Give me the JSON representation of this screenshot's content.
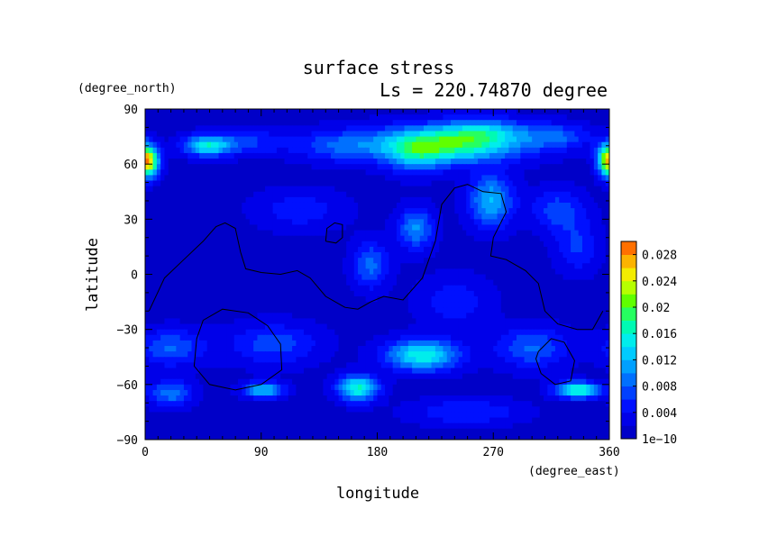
{
  "chart_data": {
    "type": "heatmap",
    "title": "surface stress",
    "subtitle": "Ls = 220.74870 degree",
    "xlabel": "longitude",
    "ylabel": "latitude",
    "x_units": "(degree_east)",
    "y_units": "(degree_north)",
    "xlim": [
      0,
      360
    ],
    "ylim": [
      -90,
      90
    ],
    "x_ticks": [
      "0",
      "90",
      "180",
      "270",
      "360"
    ],
    "y_ticks": [
      "90",
      "60",
      "30",
      "0",
      "−30",
      "−60",
      "−90"
    ],
    "x_tick_values": [
      0,
      90,
      180,
      270,
      360
    ],
    "y_tick_values": [
      90,
      60,
      30,
      0,
      -30,
      -60,
      -90
    ],
    "colorbar": {
      "min": 1e-10,
      "max": 0.03,
      "labels": [
        "1e−10",
        "0.004",
        "0.008",
        "0.012",
        "0.016",
        "0.02",
        "0.024",
        "0.028"
      ],
      "label_values": [
        0,
        0.004,
        0.008,
        0.012,
        0.016,
        0.02,
        0.024,
        0.028
      ],
      "levels": 15,
      "colormap": [
        "#0000c8",
        "#0000ff",
        "#0050ff",
        "#00a0ff",
        "#00e8ff",
        "#00ffa0",
        "#60ff00",
        "#f0ff00",
        "#ffa000",
        "#ff2800"
      ]
    },
    "blobs": [
      {
        "lon": 235,
        "lat": 71,
        "slon": 40,
        "slat": 7,
        "amp": 0.0175
      },
      {
        "lon": 210,
        "lat": 64,
        "slon": 16,
        "slat": 7,
        "amp": 0.007
      },
      {
        "lon": 265,
        "lat": 78,
        "slon": 22,
        "slat": 5,
        "amp": 0.007
      },
      {
        "lon": 48,
        "lat": 70,
        "slon": 13,
        "slat": 4,
        "amp": 0.0135
      },
      {
        "lon": 3,
        "lat": 61,
        "slon": 6,
        "slat": 6,
        "amp": 0.017
      },
      {
        "lon": 358,
        "lat": 63,
        "slon": 6,
        "slat": 6,
        "amp": 0.014
      },
      {
        "lon": 150,
        "lat": 70,
        "slon": 25,
        "slat": 6,
        "amp": 0.006
      },
      {
        "lon": 80,
        "lat": 72,
        "slon": 20,
        "slat": 5,
        "amp": 0.005
      },
      {
        "lon": 320,
        "lat": 75,
        "slon": 18,
        "slat": 5,
        "amp": 0.006
      },
      {
        "lon": 268,
        "lat": 40,
        "slon": 12,
        "slat": 10,
        "amp": 0.011
      },
      {
        "lon": 210,
        "lat": 25,
        "slon": 10,
        "slat": 8,
        "amp": 0.009
      },
      {
        "lon": 320,
        "lat": 35,
        "slon": 15,
        "slat": 8,
        "amp": 0.006
      },
      {
        "lon": 175,
        "lat": 5,
        "slon": 10,
        "slat": 9,
        "amp": 0.0075
      },
      {
        "lon": 335,
        "lat": 15,
        "slon": 12,
        "slat": 10,
        "amp": 0.005
      },
      {
        "lon": 215,
        "lat": -44,
        "slon": 20,
        "slat": 6,
        "amp": 0.0145
      },
      {
        "lon": 165,
        "lat": -62,
        "slon": 11,
        "slat": 5,
        "amp": 0.015
      },
      {
        "lon": 92,
        "lat": -63,
        "slon": 11,
        "slat": 3,
        "amp": 0.012
      },
      {
        "lon": 335,
        "lat": -63,
        "slon": 12,
        "slat": 3,
        "amp": 0.0165
      },
      {
        "lon": 20,
        "lat": -65,
        "slon": 12,
        "slat": 5,
        "amp": 0.008
      },
      {
        "lon": 300,
        "lat": -40,
        "slon": 20,
        "slat": 8,
        "amp": 0.007
      },
      {
        "lon": 100,
        "lat": -38,
        "slon": 25,
        "slat": 8,
        "amp": 0.006
      },
      {
        "lon": 20,
        "lat": -40,
        "slon": 18,
        "slat": 7,
        "amp": 0.007
      },
      {
        "lon": 250,
        "lat": -75,
        "slon": 30,
        "slat": 5,
        "amp": 0.005
      },
      {
        "lon": 120,
        "lat": 35,
        "slon": 25,
        "slat": 8,
        "amp": 0.004
      },
      {
        "lon": 240,
        "lat": -15,
        "slon": 20,
        "slat": 10,
        "amp": 0.004
      }
    ],
    "contours": [
      [
        [
          3,
          -20
        ],
        [
          15,
          -2
        ],
        [
          30,
          8
        ],
        [
          45,
          18
        ],
        [
          55,
          26
        ],
        [
          62,
          28
        ],
        [
          70,
          25
        ],
        [
          74,
          12
        ],
        [
          78,
          3
        ],
        [
          90,
          1
        ],
        [
          105,
          0
        ],
        [
          118,
          2
        ],
        [
          128,
          -2
        ],
        [
          140,
          -12
        ],
        [
          155,
          -18
        ],
        [
          165,
          -19
        ],
        [
          175,
          -15
        ],
        [
          185,
          -12
        ],
        [
          200,
          -14
        ],
        [
          215,
          -2
        ],
        [
          225,
          18
        ],
        [
          230,
          38
        ],
        [
          240,
          47
        ],
        [
          250,
          49
        ],
        [
          262,
          45
        ],
        [
          276,
          44
        ],
        [
          280,
          34
        ],
        [
          270,
          20
        ],
        [
          268,
          10
        ],
        [
          280,
          8
        ],
        [
          295,
          2
        ],
        [
          305,
          -5
        ],
        [
          310,
          -20
        ],
        [
          320,
          -27
        ],
        [
          335,
          -30
        ],
        [
          347,
          -30
        ],
        [
          355,
          -20
        ]
      ],
      [
        [
          140,
          18
        ],
        [
          148,
          17
        ],
        [
          153,
          20
        ],
        [
          153,
          27
        ],
        [
          147,
          28
        ],
        [
          141,
          25
        ],
        [
          140,
          18
        ]
      ],
      [
        [
          45,
          -25
        ],
        [
          60,
          -19
        ],
        [
          80,
          -21
        ],
        [
          95,
          -28
        ],
        [
          105,
          -38
        ],
        [
          106,
          -52
        ],
        [
          90,
          -60
        ],
        [
          70,
          -63
        ],
        [
          50,
          -60
        ],
        [
          38,
          -50
        ],
        [
          40,
          -35
        ],
        [
          45,
          -25
        ]
      ],
      [
        [
          305,
          -42
        ],
        [
          315,
          -35
        ],
        [
          325,
          -37
        ],
        [
          333,
          -47
        ],
        [
          330,
          -58
        ],
        [
          318,
          -60
        ],
        [
          307,
          -54
        ],
        [
          303,
          -46
        ],
        [
          305,
          -42
        ]
      ]
    ]
  }
}
